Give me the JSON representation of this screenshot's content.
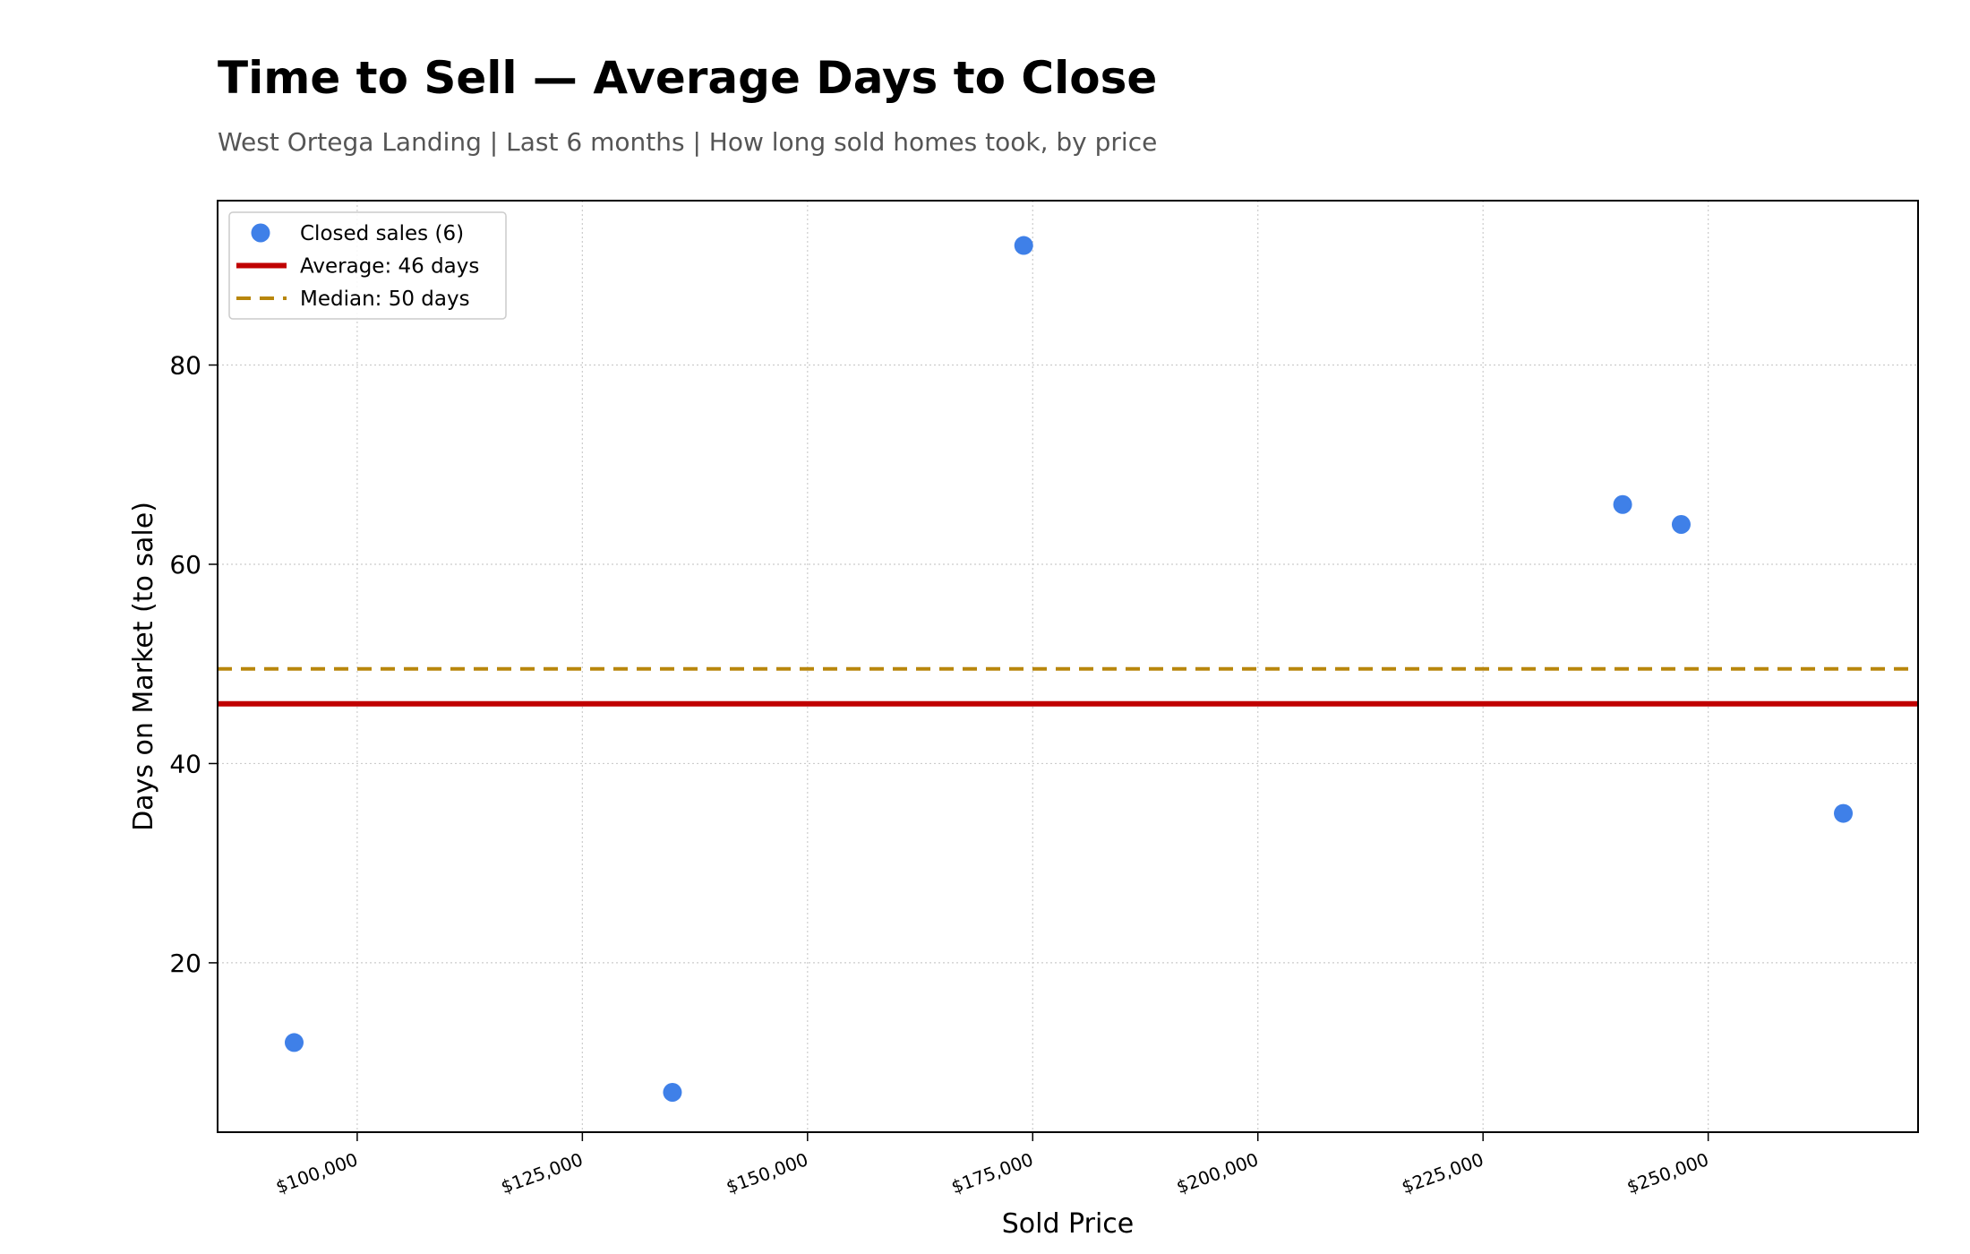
{
  "chart_data": {
    "type": "scatter",
    "title": "Time to Sell — Average Days to Close",
    "subtitle": "West Ortega Landing  |  Last 6 months  |  How long sold homes took, by price",
    "xlabel": "Sold Price",
    "ylabel": "Days on Market (to sale)",
    "xlim": [
      84500,
      273300
    ],
    "ylim": [
      3,
      96.5
    ],
    "x_ticks": [
      100000,
      125000,
      150000,
      175000,
      200000,
      225000,
      250000
    ],
    "x_tick_labels": [
      "$100,000",
      "$125,000",
      "$150,000",
      "$175,000",
      "$200,000",
      "$225,000",
      "$250,000"
    ],
    "y_ticks": [
      20,
      40,
      60,
      80
    ],
    "y_tick_labels": [
      "20",
      "40",
      "60",
      "80"
    ],
    "grid": true,
    "legend_position": "top-left",
    "series": [
      {
        "name": "Closed sales (6)",
        "kind": "scatter",
        "color": "#3f80e8",
        "points": [
          {
            "x": 93000,
            "y": 12
          },
          {
            "x": 135000,
            "y": 7
          },
          {
            "x": 174000,
            "y": 92
          },
          {
            "x": 240500,
            "y": 66
          },
          {
            "x": 247000,
            "y": 64
          },
          {
            "x": 265000,
            "y": 35
          }
        ]
      },
      {
        "name": "Average: 46 days",
        "kind": "hline",
        "color": "#c00000",
        "style": "solid",
        "y": 46
      },
      {
        "name": "Median: 50 days",
        "kind": "hline",
        "color": "#b8860b",
        "style": "dashed",
        "y": 49.5
      }
    ]
  }
}
